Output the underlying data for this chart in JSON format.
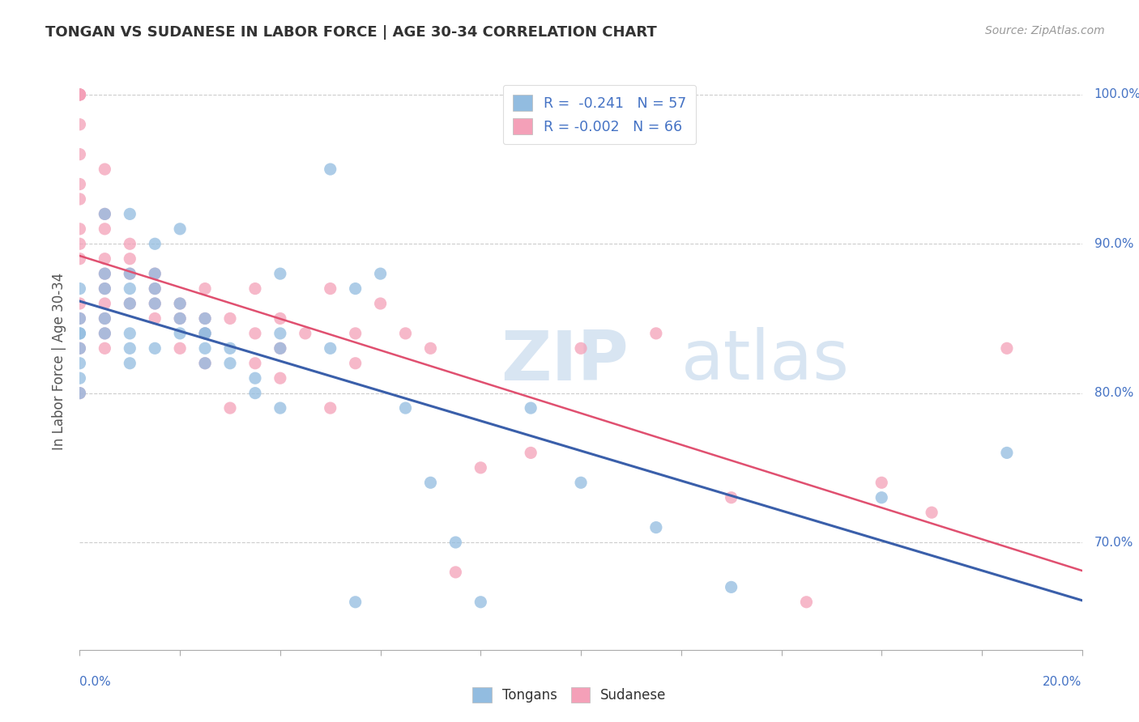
{
  "title": "TONGAN VS SUDANESE IN LABOR FORCE | AGE 30-34 CORRELATION CHART",
  "source": "Source: ZipAtlas.com",
  "ylabel": "In Labor Force | Age 30-34",
  "right_yticks": [
    0.7,
    0.8,
    0.9,
    1.0
  ],
  "right_ytick_labels": [
    "70.0%",
    "80.0%",
    "90.0%",
    "100.0%"
  ],
  "xmin": 0.0,
  "xmax": 0.2,
  "ymin": 0.628,
  "ymax": 1.015,
  "legend_blue_r": "R =  -0.241",
  "legend_blue_n": "N = 57",
  "legend_pink_r": "R = -0.002",
  "legend_pink_n": "N = 66",
  "blue_color": "#92bce0",
  "pink_color": "#f4a0b8",
  "blue_line_color": "#3a5faa",
  "pink_line_color": "#e05070",
  "watermark_zip": "ZIP",
  "watermark_atlas": "atlas",
  "blue_scatter_x": [
    0.0,
    0.0,
    0.0,
    0.0,
    0.0,
    0.0,
    0.0,
    0.0,
    0.005,
    0.005,
    0.005,
    0.005,
    0.005,
    0.01,
    0.01,
    0.01,
    0.01,
    0.01,
    0.01,
    0.01,
    0.015,
    0.015,
    0.015,
    0.015,
    0.015,
    0.02,
    0.02,
    0.02,
    0.02,
    0.025,
    0.025,
    0.025,
    0.025,
    0.025,
    0.03,
    0.03,
    0.035,
    0.035,
    0.04,
    0.04,
    0.04,
    0.04,
    0.05,
    0.05,
    0.055,
    0.055,
    0.06,
    0.065,
    0.07,
    0.075,
    0.08,
    0.09,
    0.1,
    0.115,
    0.13,
    0.16,
    0.185
  ],
  "blue_scatter_y": [
    0.87,
    0.85,
    0.84,
    0.84,
    0.83,
    0.82,
    0.81,
    0.8,
    0.92,
    0.88,
    0.87,
    0.85,
    0.84,
    0.92,
    0.88,
    0.87,
    0.86,
    0.84,
    0.83,
    0.82,
    0.9,
    0.88,
    0.87,
    0.86,
    0.83,
    0.91,
    0.86,
    0.85,
    0.84,
    0.85,
    0.84,
    0.84,
    0.83,
    0.82,
    0.83,
    0.82,
    0.81,
    0.8,
    0.88,
    0.84,
    0.83,
    0.79,
    0.95,
    0.83,
    0.87,
    0.66,
    0.88,
    0.79,
    0.74,
    0.7,
    0.66,
    0.79,
    0.74,
    0.71,
    0.67,
    0.73,
    0.76
  ],
  "pink_scatter_x": [
    0.0,
    0.0,
    0.0,
    0.0,
    0.0,
    0.0,
    0.0,
    0.0,
    0.0,
    0.0,
    0.0,
    0.0,
    0.0,
    0.0,
    0.0,
    0.005,
    0.005,
    0.005,
    0.005,
    0.005,
    0.005,
    0.005,
    0.005,
    0.005,
    0.005,
    0.01,
    0.01,
    0.01,
    0.01,
    0.015,
    0.015,
    0.015,
    0.015,
    0.02,
    0.02,
    0.02,
    0.025,
    0.025,
    0.025,
    0.025,
    0.03,
    0.03,
    0.035,
    0.035,
    0.035,
    0.04,
    0.04,
    0.04,
    0.045,
    0.05,
    0.05,
    0.055,
    0.055,
    0.06,
    0.065,
    0.07,
    0.075,
    0.08,
    0.09,
    0.1,
    0.115,
    0.13,
    0.145,
    0.16,
    0.17,
    0.185
  ],
  "pink_scatter_y": [
    1.0,
    1.0,
    1.0,
    1.0,
    0.98,
    0.96,
    0.94,
    0.93,
    0.91,
    0.9,
    0.89,
    0.86,
    0.85,
    0.83,
    0.8,
    0.95,
    0.92,
    0.91,
    0.89,
    0.88,
    0.87,
    0.86,
    0.85,
    0.84,
    0.83,
    0.9,
    0.89,
    0.88,
    0.86,
    0.88,
    0.87,
    0.86,
    0.85,
    0.86,
    0.85,
    0.83,
    0.87,
    0.85,
    0.84,
    0.82,
    0.85,
    0.79,
    0.87,
    0.84,
    0.82,
    0.85,
    0.83,
    0.81,
    0.84,
    0.87,
    0.79,
    0.84,
    0.82,
    0.86,
    0.84,
    0.83,
    0.68,
    0.75,
    0.76,
    0.83,
    0.84,
    0.73,
    0.66,
    0.74,
    0.72,
    0.83
  ]
}
